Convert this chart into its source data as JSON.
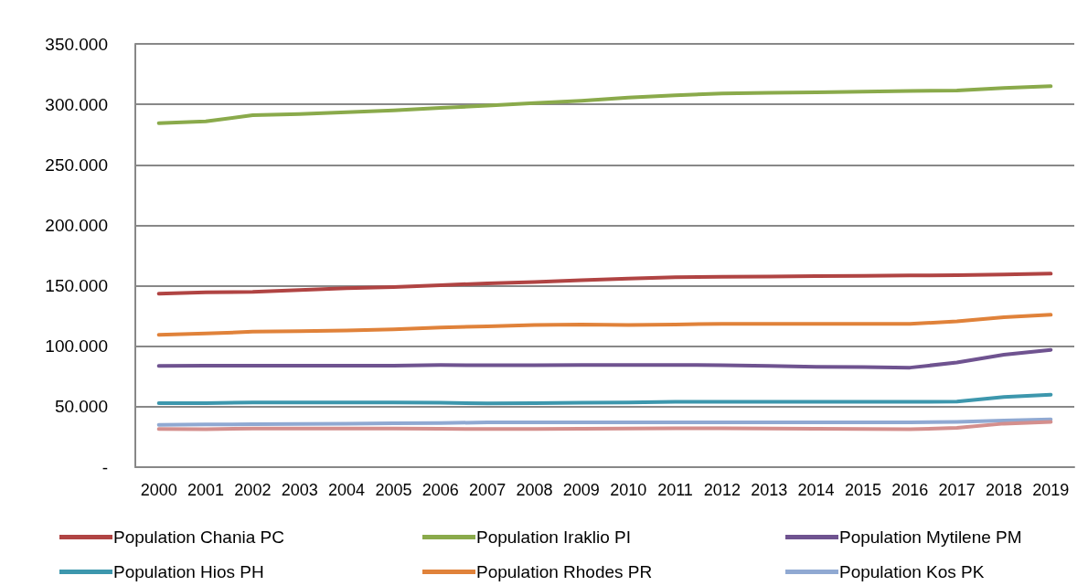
{
  "chart_data": {
    "type": "line",
    "categories": [
      "2000",
      "2001",
      "2002",
      "2003",
      "2004",
      "2005",
      "2006",
      "2007",
      "2008",
      "2009",
      "2010",
      "2011",
      "2012",
      "2013",
      "2014",
      "2015",
      "2016",
      "2017",
      "2018",
      "2019"
    ],
    "series": [
      {
        "name": "Population Chania PC",
        "color": "#b04443",
        "values": [
          143500,
          144500,
          145000,
          146500,
          148000,
          149000,
          150500,
          152000,
          153000,
          154500,
          156000,
          157000,
          157500,
          157700,
          158000,
          158200,
          158500,
          158700,
          159300,
          160000
        ]
      },
      {
        "name": "Population Iraklio PI",
        "color": "#8aaa4b",
        "values": [
          284500,
          286000,
          291000,
          292000,
          293500,
          295000,
          297000,
          299000,
          301000,
          303000,
          305500,
          307500,
          309000,
          309500,
          310000,
          310500,
          311000,
          311500,
          313500,
          315000
        ]
      },
      {
        "name": "Population Mytilene PM",
        "color": "#6f5390",
        "values": [
          83800,
          84000,
          84000,
          84000,
          84000,
          84000,
          84500,
          84200,
          84200,
          84500,
          84500,
          84500,
          84300,
          83800,
          83000,
          82800,
          82300,
          86500,
          93000,
          97000
        ]
      },
      {
        "name": "Population Hios PH",
        "color": "#3d97ad",
        "values": [
          53000,
          53000,
          53500,
          53500,
          53500,
          53500,
          53200,
          52800,
          53000,
          53200,
          53500,
          54000,
          54000,
          54000,
          54000,
          54000,
          54000,
          54300,
          58000,
          60000
        ]
      },
      {
        "name": "Population Rhodes PR",
        "color": "#e0823a",
        "values": [
          109500,
          110500,
          112000,
          112500,
          113000,
          114000,
          115500,
          116500,
          117500,
          118000,
          117500,
          118000,
          118500,
          118500,
          118500,
          118500,
          118500,
          120500,
          124000,
          126000
        ]
      },
      {
        "name": "Population Kos PK",
        "color": "#90a9d2",
        "values": [
          35000,
          35300,
          35500,
          35700,
          36000,
          36200,
          36500,
          37000,
          37000,
          37000,
          37000,
          37000,
          37000,
          37000,
          37000,
          37000,
          37000,
          37500,
          38500,
          39500
        ]
      },
      {
        "color": "#d48f8d",
        "values": [
          31500,
          31300,
          32000,
          32000,
          32000,
          32000,
          31700,
          31500,
          31500,
          31700,
          32000,
          32200,
          32200,
          32000,
          31800,
          31500,
          31300,
          32500,
          36000,
          37500
        ]
      }
    ],
    "ylim": [
      0,
      350000
    ],
    "yticks": [
      {
        "value": 0,
        "label": "-"
      },
      {
        "value": 50000,
        "label": "50.000"
      },
      {
        "value": 100000,
        "label": "100.000"
      },
      {
        "value": 150000,
        "label": "150.000"
      },
      {
        "value": 200000,
        "label": "200.000"
      },
      {
        "value": 250000,
        "label": "250.000"
      },
      {
        "value": 300000,
        "label": "300.000"
      },
      {
        "value": 350000,
        "label": "350.000"
      }
    ],
    "grid": "y",
    "legend": "bottom",
    "marker": "none",
    "line_style": "solid"
  }
}
